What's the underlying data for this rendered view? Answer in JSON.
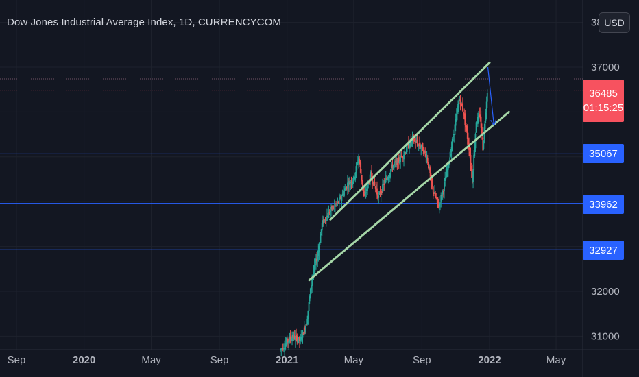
{
  "header": {
    "title": "Dow Jones Industrial Average Index, 1D, CURRENCYCOM",
    "currency_button": "USD"
  },
  "colors": {
    "background": "#131722",
    "up_candle": "#26a69a",
    "down_candle": "#ef5350",
    "channel_lines": "#a5d6a7",
    "support_lines": "#2962ff",
    "price_tag": "#f7525f",
    "arrow": "#2962ff"
  },
  "price_tag": {
    "price": "36485",
    "countdown": "01:15:25"
  },
  "chart_data": {
    "type": "candlestick",
    "y_axis": {
      "ticks": [
        "38000",
        "37000",
        "32000",
        "31000"
      ],
      "range": [
        30900,
        38400
      ],
      "scale": "linear"
    },
    "x_axis": {
      "ticks": [
        "Sep",
        "2020",
        "May",
        "Sep",
        "2021",
        "May",
        "Sep",
        "2022",
        "May"
      ],
      "tick_dates": [
        "2019-09",
        "2020-01",
        "2020-05",
        "2020-09",
        "2021-01",
        "2021-05",
        "2021-09",
        "2022-01",
        "2022-05"
      ]
    },
    "horizontal_levels": [
      35067,
      33962,
      32927
    ],
    "last_price": 36485,
    "price_series": {
      "dates": [
        "2020-12-20",
        "2021-01-10",
        "2021-01-25",
        "2021-02-05",
        "2021-02-15",
        "2021-02-25",
        "2021-03-05",
        "2021-03-20",
        "2021-04-05",
        "2021-04-20",
        "2021-05-01",
        "2021-05-10",
        "2021-05-20",
        "2021-06-01",
        "2021-06-15",
        "2021-06-25",
        "2021-07-10",
        "2021-07-20",
        "2021-08-01",
        "2021-08-15",
        "2021-09-01",
        "2021-09-10",
        "2021-09-20",
        "2021-10-01",
        "2021-10-10",
        "2021-10-20",
        "2021-11-01",
        "2021-11-08",
        "2021-11-15",
        "2021-11-25",
        "2021-12-01",
        "2021-12-08",
        "2021-12-15",
        "2021-12-20",
        "2021-12-28"
      ],
      "closes": [
        30700,
        31000,
        30900,
        31300,
        32300,
        32800,
        33500,
        33800,
        34000,
        34400,
        34500,
        35000,
        34100,
        34600,
        34100,
        34400,
        34800,
        34900,
        35100,
        35400,
        35200,
        35000,
        34300,
        33900,
        34300,
        34900,
        35800,
        36300,
        36000,
        35200,
        34500,
        35800,
        35900,
        35200,
        36485
      ]
    },
    "channel": {
      "upper": {
        "start": [
          "2021-03-20",
          33600
        ],
        "end": [
          "2022-01-01",
          37100
        ]
      },
      "lower": {
        "start": [
          "2021-02-10",
          32250
        ],
        "end": [
          "2022-02-05",
          36000
        ]
      }
    },
    "projection_arrow": {
      "start": [
        "2021-12-29",
        37000
      ],
      "end": [
        "2022-01-09",
        35700
      ]
    }
  }
}
